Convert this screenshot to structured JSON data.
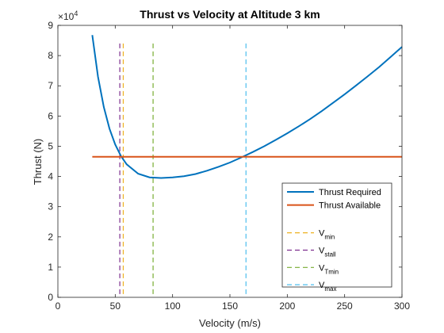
{
  "chart_data": {
    "type": "line",
    "title": "Thrust vs Velocity at Altitude 3 km",
    "xlabel": "Velocity (m/s)",
    "ylabel": "Thrust (N)",
    "y_exponent_label": "×10",
    "y_exponent_power": "4",
    "xlim": [
      0,
      300
    ],
    "ylim": [
      0,
      90000
    ],
    "xticks": [
      0,
      50,
      100,
      150,
      200,
      250,
      300
    ],
    "yticks": [
      0,
      1,
      2,
      3,
      4,
      5,
      6,
      7,
      8,
      9
    ],
    "grid": false,
    "legend_position": "bottom-right",
    "series": [
      {
        "name": "Thrust Required",
        "color": "#0072BD",
        "style": "solid",
        "x": [
          30,
          35,
          40,
          45,
          50,
          55,
          60,
          70,
          80,
          90,
          100,
          110,
          120,
          130,
          140,
          150,
          160,
          170,
          180,
          190,
          200,
          210,
          220,
          230,
          240,
          250,
          260,
          270,
          280,
          290,
          300
        ],
        "y": [
          86800,
          73000,
          63000,
          55800,
          50600,
          46700,
          44000,
          40900,
          39700,
          39500,
          39700,
          40100,
          40800,
          41900,
          43200,
          44600,
          46300,
          48100,
          50000,
          52100,
          54300,
          56600,
          59000,
          61600,
          64400,
          67200,
          70100,
          73100,
          76200,
          79500,
          82900
        ]
      },
      {
        "name": "Thrust Available",
        "color": "#D95319",
        "style": "solid",
        "x": [
          30,
          300
        ],
        "y": [
          46500,
          46500
        ]
      },
      {
        "name": "V_min",
        "label_main": "V",
        "label_sub": "min",
        "color": "#EDB120",
        "style": "dashed",
        "x_value": 57
      },
      {
        "name": "V_stall",
        "label_main": "V",
        "label_sub": "stall",
        "color": "#7E2F8E",
        "style": "dashed",
        "x_value": 54
      },
      {
        "name": "V_Tmin",
        "label_main": "V",
        "label_sub": "Tmin",
        "color": "#77AC30",
        "style": "dashed",
        "x_value": 83
      },
      {
        "name": "V_max",
        "label_main": "V",
        "label_sub": "max",
        "color": "#4DBEEE",
        "style": "dashed",
        "x_value": 164
      }
    ]
  }
}
